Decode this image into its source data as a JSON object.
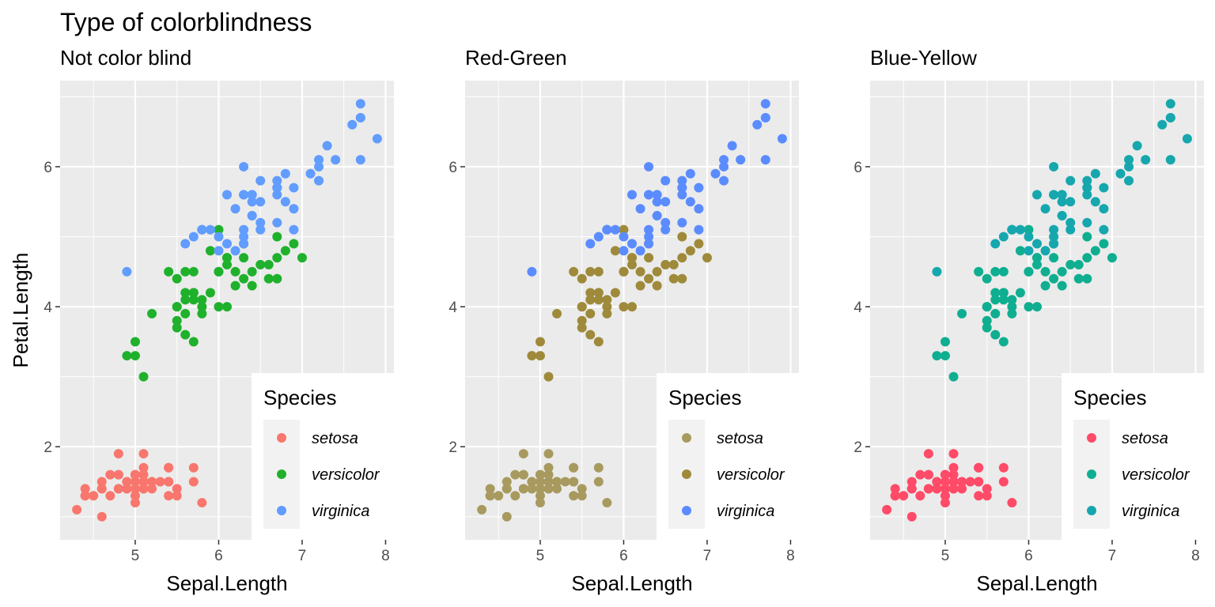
{
  "title": "Type of colorblindness",
  "chart_data": {
    "type": "scatter",
    "xlabel": "Sepal.Length",
    "ylabel": "Petal.Length",
    "xlim": [
      4.1,
      8.1
    ],
    "ylim": [
      0.67,
      7.23
    ],
    "xticks": [
      5,
      6,
      7,
      8
    ],
    "yticks": [
      2,
      4,
      6
    ],
    "grid": true,
    "legend_title": "Species",
    "legend_position": "bottom-right",
    "categories": [
      "setosa",
      "versicolor",
      "virginica"
    ],
    "series": [
      {
        "name": "setosa",
        "points": [
          [
            5.1,
            1.4
          ],
          [
            4.9,
            1.4
          ],
          [
            4.7,
            1.3
          ],
          [
            4.6,
            1.5
          ],
          [
            5.0,
            1.4
          ],
          [
            5.4,
            1.7
          ],
          [
            4.6,
            1.4
          ],
          [
            5.0,
            1.5
          ],
          [
            4.4,
            1.4
          ],
          [
            4.9,
            1.5
          ],
          [
            5.4,
            1.5
          ],
          [
            4.8,
            1.6
          ],
          [
            4.8,
            1.4
          ],
          [
            4.3,
            1.1
          ],
          [
            5.8,
            1.2
          ],
          [
            5.7,
            1.5
          ],
          [
            5.4,
            1.3
          ],
          [
            5.1,
            1.4
          ],
          [
            5.7,
            1.7
          ],
          [
            5.1,
            1.5
          ],
          [
            5.4,
            1.7
          ],
          [
            5.1,
            1.5
          ],
          [
            4.6,
            1.0
          ],
          [
            5.1,
            1.7
          ],
          [
            4.8,
            1.9
          ],
          [
            5.0,
            1.6
          ],
          [
            5.0,
            1.6
          ],
          [
            5.2,
            1.5
          ],
          [
            5.2,
            1.4
          ],
          [
            4.7,
            1.6
          ],
          [
            4.8,
            1.6
          ],
          [
            5.4,
            1.5
          ],
          [
            5.2,
            1.5
          ],
          [
            5.5,
            1.4
          ],
          [
            4.9,
            1.5
          ],
          [
            5.0,
            1.2
          ],
          [
            5.5,
            1.3
          ],
          [
            4.9,
            1.4
          ],
          [
            4.4,
            1.3
          ],
          [
            5.1,
            1.5
          ],
          [
            5.0,
            1.3
          ],
          [
            4.5,
            1.3
          ],
          [
            4.4,
            1.3
          ],
          [
            5.0,
            1.6
          ],
          [
            5.1,
            1.9
          ],
          [
            4.8,
            1.4
          ],
          [
            5.1,
            1.6
          ],
          [
            4.6,
            1.4
          ],
          [
            5.3,
            1.5
          ],
          [
            5.0,
            1.4
          ]
        ]
      },
      {
        "name": "versicolor",
        "points": [
          [
            7.0,
            4.7
          ],
          [
            6.4,
            4.5
          ],
          [
            6.9,
            4.9
          ],
          [
            5.5,
            4.0
          ],
          [
            6.5,
            4.6
          ],
          [
            5.7,
            4.5
          ],
          [
            6.3,
            4.7
          ],
          [
            4.9,
            3.3
          ],
          [
            6.6,
            4.6
          ],
          [
            5.2,
            3.9
          ],
          [
            5.0,
            3.5
          ],
          [
            5.9,
            4.2
          ],
          [
            6.0,
            4.0
          ],
          [
            6.1,
            4.7
          ],
          [
            5.6,
            3.6
          ],
          [
            6.7,
            4.4
          ],
          [
            5.6,
            4.5
          ],
          [
            5.8,
            4.1
          ],
          [
            6.2,
            4.5
          ],
          [
            5.6,
            3.9
          ],
          [
            5.9,
            4.8
          ],
          [
            6.1,
            4.0
          ],
          [
            6.3,
            4.9
          ],
          [
            6.1,
            4.7
          ],
          [
            6.4,
            4.3
          ],
          [
            6.6,
            4.4
          ],
          [
            6.8,
            4.8
          ],
          [
            6.7,
            5.0
          ],
          [
            6.0,
            4.5
          ],
          [
            5.7,
            3.5
          ],
          [
            5.5,
            3.8
          ],
          [
            5.5,
            3.7
          ],
          [
            5.8,
            3.9
          ],
          [
            6.0,
            5.1
          ],
          [
            5.4,
            4.5
          ],
          [
            6.0,
            4.5
          ],
          [
            6.7,
            4.7
          ],
          [
            6.3,
            4.4
          ],
          [
            5.6,
            4.1
          ],
          [
            5.5,
            4.0
          ],
          [
            5.5,
            4.4
          ],
          [
            6.1,
            4.6
          ],
          [
            5.8,
            4.0
          ],
          [
            5.0,
            3.3
          ],
          [
            5.6,
            4.2
          ],
          [
            5.7,
            4.2
          ],
          [
            5.7,
            4.2
          ],
          [
            6.2,
            4.3
          ],
          [
            5.1,
            3.0
          ],
          [
            5.7,
            4.1
          ]
        ]
      },
      {
        "name": "virginica",
        "points": [
          [
            6.3,
            6.0
          ],
          [
            5.8,
            5.1
          ],
          [
            7.1,
            5.9
          ],
          [
            6.3,
            5.6
          ],
          [
            6.5,
            5.8
          ],
          [
            7.6,
            6.6
          ],
          [
            4.9,
            4.5
          ],
          [
            7.3,
            6.3
          ],
          [
            6.7,
            5.8
          ],
          [
            7.2,
            6.1
          ],
          [
            6.5,
            5.1
          ],
          [
            6.4,
            5.3
          ],
          [
            6.8,
            5.5
          ],
          [
            5.7,
            5.0
          ],
          [
            5.8,
            5.1
          ],
          [
            6.4,
            5.3
          ],
          [
            6.5,
            5.5
          ],
          [
            7.7,
            6.7
          ],
          [
            7.7,
            6.9
          ],
          [
            6.0,
            5.0
          ],
          [
            6.9,
            5.7
          ],
          [
            5.6,
            4.9
          ],
          [
            7.7,
            6.7
          ],
          [
            6.3,
            4.9
          ],
          [
            6.7,
            5.7
          ],
          [
            7.2,
            6.0
          ],
          [
            6.2,
            4.8
          ],
          [
            6.1,
            4.9
          ],
          [
            6.4,
            5.6
          ],
          [
            7.2,
            5.8
          ],
          [
            7.4,
            6.1
          ],
          [
            7.9,
            6.4
          ],
          [
            6.4,
            5.6
          ],
          [
            6.3,
            5.1
          ],
          [
            6.1,
            5.6
          ],
          [
            7.7,
            6.1
          ],
          [
            6.3,
            5.6
          ],
          [
            6.4,
            5.5
          ],
          [
            6.0,
            4.8
          ],
          [
            6.9,
            5.4
          ],
          [
            6.7,
            5.6
          ],
          [
            6.9,
            5.1
          ],
          [
            5.8,
            5.1
          ],
          [
            6.8,
            5.9
          ],
          [
            6.7,
            5.7
          ],
          [
            6.7,
            5.2
          ],
          [
            6.3,
            5.0
          ],
          [
            6.5,
            5.2
          ],
          [
            6.2,
            5.4
          ],
          [
            5.9,
            5.1
          ]
        ]
      }
    ]
  },
  "panels": [
    {
      "subtitle": "Not color blind",
      "colors": {
        "setosa": "#F8766D",
        "versicolor": "#1FB12C",
        "virginica": "#619CFF"
      }
    },
    {
      "subtitle": "Red-Green",
      "colors": {
        "setosa": "#A89A5F",
        "versicolor": "#9E8A3A",
        "virginica": "#5B8CFF"
      }
    },
    {
      "subtitle": "Blue-Yellow",
      "colors": {
        "setosa": "#FF4A68",
        "versicolor": "#0FAE90",
        "virginica": "#16A7AE"
      }
    }
  ],
  "colors": {
    "panel_background": "#EBEBEB",
    "grid": "#FFFFFF",
    "legend_key_background": "#F2F2F2"
  }
}
